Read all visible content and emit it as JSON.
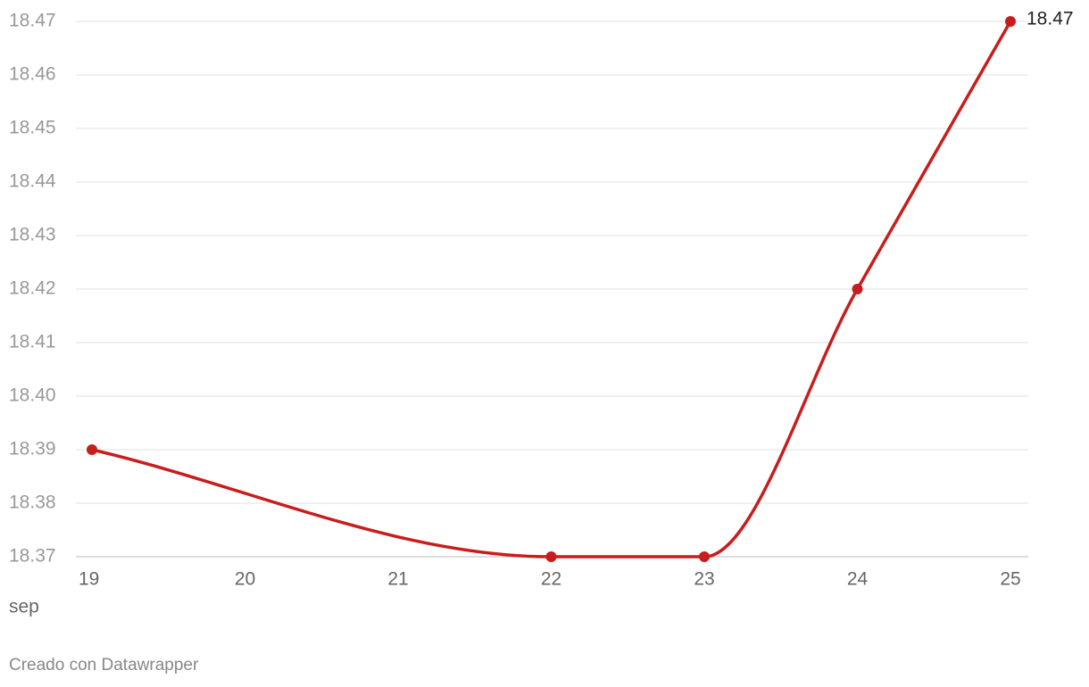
{
  "chart_data": {
    "type": "line",
    "x": [
      19,
      22,
      23,
      24,
      25
    ],
    "x_unit_label": "sep",
    "series": [
      {
        "color": "#c71e1d",
        "values": [
          18.39,
          18.37,
          18.37,
          18.42,
          18.47
        ]
      }
    ],
    "xlim": [
      19,
      25
    ],
    "xticks": [
      19,
      20,
      21,
      22,
      23,
      24,
      25
    ],
    "ylim": [
      18.37,
      18.47
    ],
    "yticks": [
      18.37,
      18.38,
      18.39,
      {
        "value": 18.4,
        "label": "18.40"
      },
      18.41,
      18.42,
      18.43,
      18.44,
      18.45,
      18.46,
      18.47
    ],
    "grid": true,
    "footer": "Creado con Datawrapper"
  }
}
